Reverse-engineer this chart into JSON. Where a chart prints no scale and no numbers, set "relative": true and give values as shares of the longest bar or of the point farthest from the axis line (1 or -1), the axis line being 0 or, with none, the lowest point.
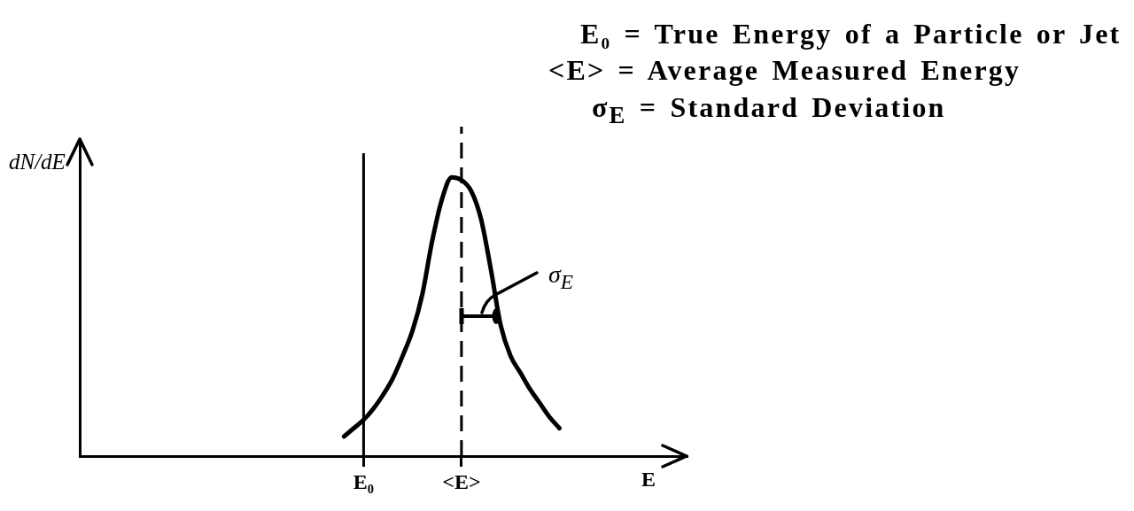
{
  "chart_data": {
    "type": "line",
    "relative": true,
    "xlabel": "E",
    "ylabel": "dN/dE",
    "categories": [
      null,
      null,
      null,
      null,
      null,
      null,
      null,
      null,
      null,
      null,
      null,
      null,
      null,
      null,
      null,
      null,
      null,
      null,
      null,
      null,
      null,
      null,
      null,
      null,
      null,
      null,
      null,
      null,
      null,
      "E₀",
      null,
      null,
      null,
      null,
      null,
      null,
      null,
      null,
      null,
      "<E>",
      null,
      null,
      null,
      null,
      null,
      null,
      null,
      null,
      null,
      null,
      null,
      null,
      null,
      null,
      null,
      null,
      null,
      null,
      null,
      null,
      null,
      null,
      null
    ],
    "series": [
      {
        "color": "#000000",
        "values": [
          null,
          null,
          null,
          null,
          null,
          null,
          null,
          null,
          null,
          null,
          null,
          null,
          null,
          null,
          null,
          null,
          null,
          null,
          null,
          null,
          null,
          null,
          null,
          null,
          null,
          null,
          null,
          0.07,
          0.1,
          0.13,
          0.17,
          0.22,
          0.28,
          0.36,
          0.45,
          0.58,
          0.77,
          0.92,
          1,
          0.99,
          0.95,
          0.85,
          0.67,
          0.47,
          0.36,
          0.3,
          0.24,
          0.19,
          0.14,
          0.1,
          null,
          null,
          null,
          null,
          null,
          null,
          null,
          null,
          null,
          null,
          null,
          null,
          null
        ]
      }
    ],
    "ref_lines": [
      {
        "axis": "x",
        "value": "E₀",
        "line_style": "solid",
        "color": "#000000"
      },
      {
        "axis": "x",
        "value": "<E>",
        "line_style": "dashed",
        "color": "#000000"
      }
    ],
    "annotations": [
      "E₀ = True Energy of a Particle or Jet",
      "<E> = Average Measured Energy",
      "σ$_{E}$ = Standard Deviation",
      "σ$_{E}$"
    ],
    "grid": false,
    "legend": false,
    "marker": "none"
  }
}
